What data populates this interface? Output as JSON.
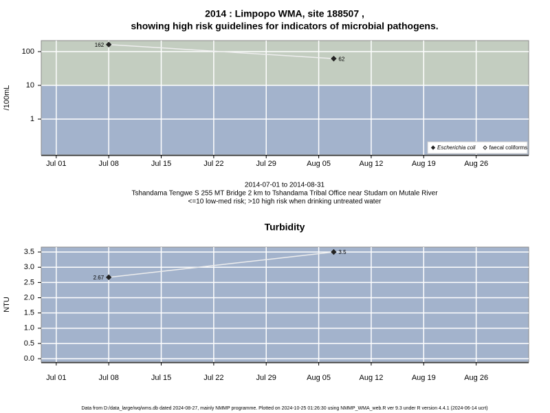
{
  "chart_data": [
    {
      "type": "line",
      "title": [
        "2014 : Limpopo WMA, site 188507 ,",
        "showing high risk guidelines for indicators of microbial pathogens."
      ],
      "subtitle": [
        "2014-07-01 to 2014-08-31",
        "Tshandama Tengwe S 255 MT Bridge 2 km to Tshandama Tribal Office near Studam on Mutale River",
        "<=10 low-med risk; >10 high risk when drinking untreated water"
      ],
      "ylabel": "/100mL",
      "x": [
        "2014-07-08",
        "2014-08-07"
      ],
      "series": [
        {
          "name": "Escherichia coli",
          "color": "#222222",
          "marker": "filled",
          "values": [
            162,
            62
          ]
        },
        {
          "name": "faecal coliforms",
          "color": "#222222",
          "marker": "open",
          "values": [
            null,
            null
          ]
        }
      ],
      "log_y": true,
      "ylim": [
        0.087,
        212
      ],
      "yticks": [
        1,
        10,
        100
      ],
      "threshold": 10,
      "band_colors": {
        "above": "#c3cdc0",
        "below": "#a3b3cc"
      },
      "xlim": [
        "2014-06-29",
        "2014-09-02"
      ],
      "xticks": [
        {
          "value": "2014-07-01",
          "label": "Jul 01"
        },
        {
          "value": "2014-07-08",
          "label": "Jul 08"
        },
        {
          "value": "2014-07-15",
          "label": "Jul 15"
        },
        {
          "value": "2014-07-22",
          "label": "Jul 22"
        },
        {
          "value": "2014-07-29",
          "label": "Jul 29"
        },
        {
          "value": "2014-08-05",
          "label": "Aug 05"
        },
        {
          "value": "2014-08-12",
          "label": "Aug 12"
        },
        {
          "value": "2014-08-19",
          "label": "Aug 19"
        },
        {
          "value": "2014-08-26",
          "label": "Aug 26"
        }
      ],
      "grid": true,
      "legend": "bottom-right"
    },
    {
      "type": "line",
      "title": [
        "Turbidity"
      ],
      "ylabel": "NTU",
      "x": [
        "2014-07-08",
        "2014-08-07"
      ],
      "series": [
        {
          "name": "Turbidity",
          "color": "#222222",
          "marker": "filled",
          "values": [
            2.67,
            3.5
          ]
        }
      ],
      "log_y": false,
      "ylim": [
        -0.11,
        3.66
      ],
      "yticks": [
        {
          "value": 0,
          "label": "0.0"
        },
        {
          "value": 0.5,
          "label": "0.5"
        },
        {
          "value": 1,
          "label": "1.0"
        },
        {
          "value": 1.5,
          "label": "1.5"
        },
        {
          "value": 2,
          "label": "2.0"
        },
        {
          "value": 2.5,
          "label": "2.5"
        },
        {
          "value": 3,
          "label": "3.0"
        },
        {
          "value": 3.5,
          "label": "3.5"
        }
      ],
      "background": "#a3b3cc",
      "xlim": [
        "2014-06-29",
        "2014-09-02"
      ],
      "xticks": [
        {
          "value": "2014-07-01",
          "label": "Jul 01"
        },
        {
          "value": "2014-07-08",
          "label": "Jul 08"
        },
        {
          "value": "2014-07-15",
          "label": "Jul 15"
        },
        {
          "value": "2014-07-22",
          "label": "Jul 22"
        },
        {
          "value": "2014-07-29",
          "label": "Jul 29"
        },
        {
          "value": "2014-08-05",
          "label": "Aug 05"
        },
        {
          "value": "2014-08-12",
          "label": "Aug 12"
        },
        {
          "value": "2014-08-19",
          "label": "Aug 19"
        },
        {
          "value": "2014-08-26",
          "label": "Aug 26"
        }
      ],
      "grid": true
    }
  ],
  "footer": "Data from D:/data_large/wq/wms.db dated 2024-08-27, mainly NMMP programme. Plotted on 2024-10-25 01:26:30 using NMMP_WMA_web.R ver 9.3 under R version 4.4.1 (2024-06-14 ucrt)"
}
